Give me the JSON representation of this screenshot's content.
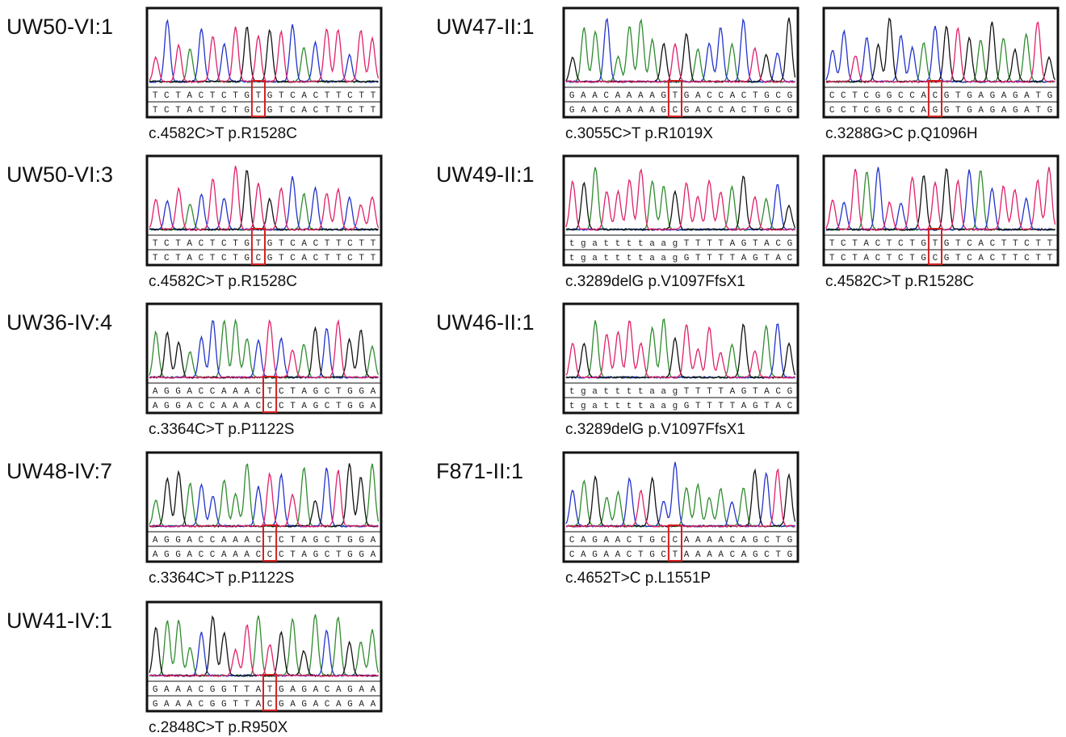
{
  "panels": [
    {
      "label": "UW50-VI:1",
      "sequences": [
        "TCTACTCTGTGTCACTTCTT",
        "TCTACTCTGCGTCACTTCTT"
      ],
      "caption": "c.4582C>T p.R1528C"
    },
    {
      "label": "UW50-VI:3",
      "sequences": [
        "TCTACTCTGTGTCACTTCTT",
        "TCTACTCTGCGTCACTTCTT"
      ],
      "caption": "c.4582C>T p.R1528C"
    },
    {
      "label": "UW36-IV:4",
      "sequences": [
        "AGGACCAAACTCTAGCTGGA",
        "AGGACCAAACCCTAGCTGGA"
      ],
      "caption": "c.3364C>T p.P1122S"
    },
    {
      "label": "UW48-IV:7",
      "sequences": [
        "AGGACCAAACTCTAGCTGGA",
        "AGGACCAAACCCTAGCTGGA"
      ],
      "caption": "c.3364C>T p.P1122S"
    },
    {
      "label": "UW41-IV:1",
      "sequences": [
        "GAAACGGTTATGAGACAGAA",
        "GAAACGGTTACGAGACAGAA"
      ],
      "caption": "c.2848C>T p.R950X"
    },
    {
      "label": "UW47-II:1",
      "sequences": [
        "GAACAAAAGTGACCACTGCG",
        "GAACAAAAGCGACCACTGCG"
      ],
      "caption": "c.3055C>T p.R1019X"
    },
    {
      "label": "UW49-II:1",
      "sequences": [
        "tgattttaagTTTTAGTACG",
        "tgattttaagGTTTTAGTAC"
      ],
      "caption": "c.3289delG p.V1097FfsX1"
    },
    {
      "label": "UW46-II:1",
      "sequences": [
        "tgattttaagTTTTAGTACG",
        "tgattttaagGTTTTAGTAC"
      ],
      "caption": "c.3289delG p.V1097FfsX1"
    },
    {
      "label": "F871-II:1",
      "sequences": [
        "CAGAACTGCCAAAACAGCTG",
        "CAGAACTGCTAAAACAGCTG"
      ],
      "caption": "c.4652T>C p.L1551P"
    },
    {
      "sequences": [
        "CCTCGGCCACGTGAGAGATG",
        "CCTCGGCCAGGTGAGAGATG"
      ],
      "caption": "c.3288G>C p.Q1096H"
    },
    {
      "sequences": [
        "TCTACTCTGTGTCACTTCTT",
        "TCTACTCTGCGTCACTTCTT"
      ],
      "caption": "c.4582C>T p.R1528C"
    }
  ]
}
